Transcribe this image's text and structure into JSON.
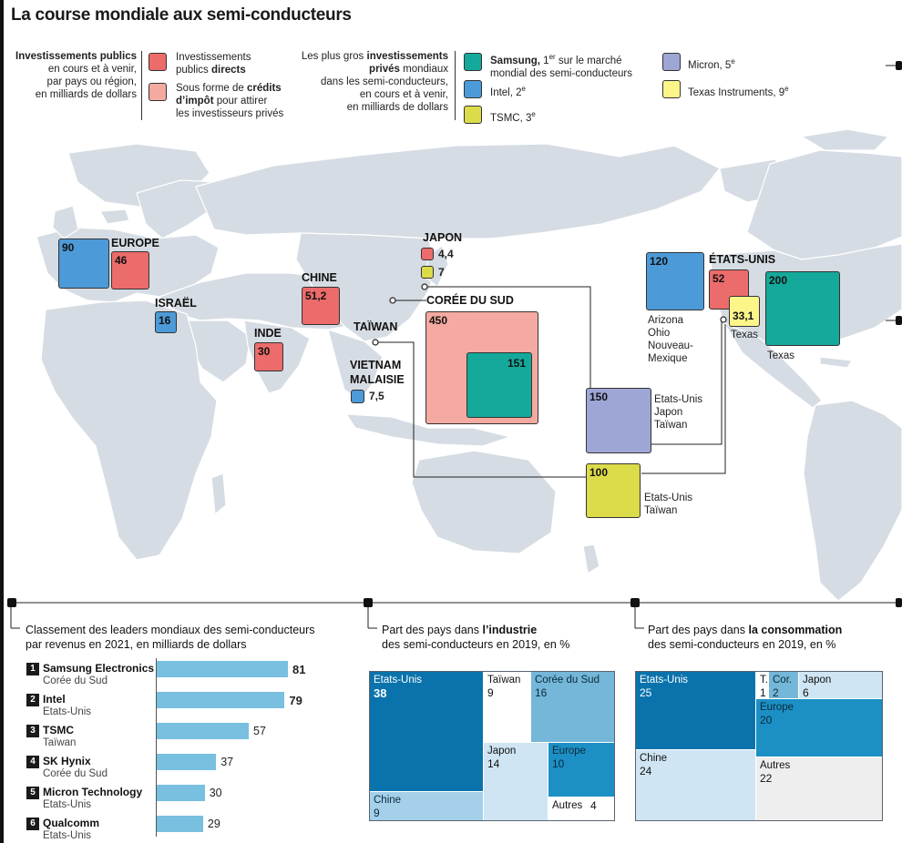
{
  "title": "La course mondiale aux semi-conducteurs",
  "colors": {
    "public_direct": "#ec6b6b",
    "tax_credit": "#f4aaa0",
    "samsung": "#14a99a",
    "intel": "#4d9ad8",
    "tsmc": "#dcdb4a",
    "micron": "#9ea6d6",
    "ti": "#fbf58a",
    "map_land": "#d6dce3",
    "bar": "#78bfe0"
  },
  "legend": {
    "public_title": "Investissements publics",
    "public_sub1": "en cours et à venir,",
    "public_sub2": "par pays ou région,",
    "public_sub3": "en milliards de dollars",
    "direct_line1": "Investissements",
    "direct_line2_pre": "publics ",
    "direct_line2_bold": "directs",
    "tax_line1_pre": "Sous forme de ",
    "tax_line1_bold": "crédits",
    "tax_line2_bold": "d’impôt",
    "tax_line2_post": " pour attirer",
    "tax_line3": "les investisseurs privés",
    "private_line1_pre": "Les plus gros ",
    "private_line1_bold": "investissements",
    "private_line2_bold": "privés",
    "private_line2_post": " mondiaux",
    "private_line3": "dans les semi-conducteurs,",
    "private_line4": "en cours et à venir,",
    "private_line5": "en milliards de dollars",
    "samsung_name": "Samsung, ",
    "samsung_rank": "1",
    "samsung_rank_sup": "er",
    "samsung_rank_post": " sur le marché",
    "samsung_line2": "mondial des semi-conducteurs",
    "intel_label": "Intel, 2",
    "intel_sup": "e",
    "tsmc_label": "TSMC, 3",
    "tsmc_sup": "e",
    "micron_label": "Micron, 5",
    "micron_sup": "e",
    "ti_label": "Texas Instruments, 9",
    "ti_sup": "e"
  },
  "map": {
    "europe": {
      "label": "EUROPE",
      "intel": "90",
      "public": "46"
    },
    "israel": {
      "label": "ISRAËL",
      "intel": "16"
    },
    "inde": {
      "label": "INDE",
      "public": "30"
    },
    "chine": {
      "label": "CHINE",
      "public": "51,2"
    },
    "japon": {
      "label": "JAPON",
      "public": "4,4",
      "tsmc": "7"
    },
    "coree": {
      "label": "CORÉE DU SUD",
      "tax": "450",
      "samsung": "151"
    },
    "taiwan": {
      "label": "TAÏWAN"
    },
    "vietnam": {
      "label1": "VIETNAM",
      "label2": "MALAISIE",
      "intel": "7,5"
    },
    "micron": {
      "value": "150",
      "l1": "Etats-Unis",
      "l2": "Japon",
      "l3": "Taïwan"
    },
    "tsmc": {
      "value": "100",
      "l1": "Etats-Unis",
      "l2": "Taïwan"
    },
    "usa": {
      "label": "ÉTATS-UNIS",
      "intel": "120",
      "public": "52",
      "ti": "33,1",
      "samsung": "200",
      "intel_l1": "Arizona",
      "intel_l2": "Ohio",
      "intel_l3": "Nouveau-",
      "intel_l4": "Mexique",
      "ti_note": "Texas",
      "samsung_note": "Texas"
    }
  },
  "panel1": {
    "title1": "Classement des leaders mondiaux des semi-conducteurs",
    "title2": "par revenus en 2021, en milliards de dollars"
  },
  "panel2": {
    "title1_pre": "Part des pays dans ",
    "title1_bold": "l’industrie",
    "title2": "des semi-conducteurs en 2019, en %"
  },
  "panel3": {
    "title1_pre": "Part des pays dans ",
    "title1_bold": "la consommation",
    "title2": "des semi-conducteurs en 2019, en %"
  },
  "chart_data": [
    {
      "type": "bar",
      "title": "Classement des leaders mondiaux des semi-conducteurs par revenus en 2021, en milliards de dollars",
      "orientation": "horizontal",
      "categories": [
        "Samsung Electronics",
        "Intel",
        "TSMC",
        "SK Hynix",
        "Micron Technology",
        "Qualcomm"
      ],
      "countries": [
        "Corée du Sud",
        "Etats-Unis",
        "Taïwan",
        "Corée du Sud",
        "Etats-Unis",
        "Etats-Unis"
      ],
      "ranks": [
        "1",
        "2",
        "3",
        "4",
        "5",
        "6"
      ],
      "values": [
        81,
        79,
        57,
        37,
        30,
        29
      ],
      "value_labels": [
        "81",
        "79",
        "57",
        "37",
        "30",
        "29"
      ],
      "xlim": [
        0,
        81
      ]
    },
    {
      "type": "heatmap",
      "title": "Part des pays dans l’industrie des semi-conducteurs en 2019, en %",
      "cells": [
        {
          "name": "Etats-Unis",
          "value": 38,
          "label": "38"
        },
        {
          "name": "Chine",
          "value": 9,
          "label": "9"
        },
        {
          "name": "Taïwan",
          "value": 9,
          "label": "9"
        },
        {
          "name": "Corée du Sud",
          "value": 16,
          "label": "16"
        },
        {
          "name": "Japon",
          "value": 14,
          "label": "14"
        },
        {
          "name": "Europe",
          "value": 10,
          "label": "10"
        },
        {
          "name": "Autres",
          "value": 4,
          "label": "4"
        }
      ]
    },
    {
      "type": "heatmap",
      "title": "Part des pays dans la consommation des semi-conducteurs en 2019, en %",
      "cells": [
        {
          "name": "Etats-Unis",
          "value": 25,
          "label": "25"
        },
        {
          "name": "Chine",
          "value": 24,
          "label": "24"
        },
        {
          "name": "T.",
          "value": 1,
          "label": "1"
        },
        {
          "name": "Cor.",
          "value": 2,
          "label": "2"
        },
        {
          "name": "Japon",
          "value": 6,
          "label": "6"
        },
        {
          "name": "Europe",
          "value": 20,
          "label": "20"
        },
        {
          "name": "Autres",
          "value": 22,
          "label": "22"
        }
      ]
    }
  ]
}
